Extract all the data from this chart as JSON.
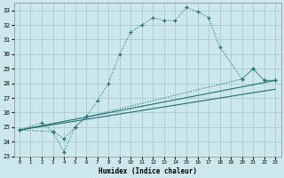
{
  "xlabel": "Humidex (Indice chaleur)",
  "background_color": "#cde8ec",
  "grid_color": "#aacccc",
  "line_color": "#207070",
  "xlim": [
    -0.5,
    23.5
  ],
  "ylim": [
    23,
    33.5
  ],
  "yticks": [
    23,
    24,
    25,
    26,
    27,
    28,
    29,
    30,
    31,
    32,
    33
  ],
  "xticks": [
    0,
    1,
    2,
    3,
    4,
    5,
    6,
    7,
    8,
    9,
    10,
    11,
    12,
    13,
    14,
    15,
    16,
    17,
    18,
    19,
    20,
    21,
    22,
    23
  ],
  "curve_main_x": [
    0,
    2,
    3,
    4,
    5,
    6,
    7,
    8,
    9,
    10,
    11,
    12,
    13,
    14,
    15,
    16,
    17,
    18,
    20,
    21,
    22,
    23
  ],
  "curve_main_y": [
    24.8,
    25.3,
    24.7,
    24.2,
    25.0,
    25.7,
    26.8,
    28.0,
    30.0,
    31.5,
    32.0,
    32.5,
    32.3,
    32.3,
    33.2,
    32.9,
    32.5,
    30.5,
    28.3,
    29.0,
    28.2,
    28.2
  ],
  "curve_lower_x": [
    0,
    3,
    4,
    5,
    6,
    20,
    21,
    22,
    23
  ],
  "curve_lower_y": [
    24.8,
    24.7,
    23.3,
    25.0,
    25.7,
    28.3,
    29.0,
    28.2,
    28.2
  ],
  "trend1_x": [
    0,
    23
  ],
  "trend1_y": [
    24.8,
    28.2
  ],
  "trend2_x": [
    0,
    23
  ],
  "trend2_y": [
    24.8,
    27.6
  ]
}
